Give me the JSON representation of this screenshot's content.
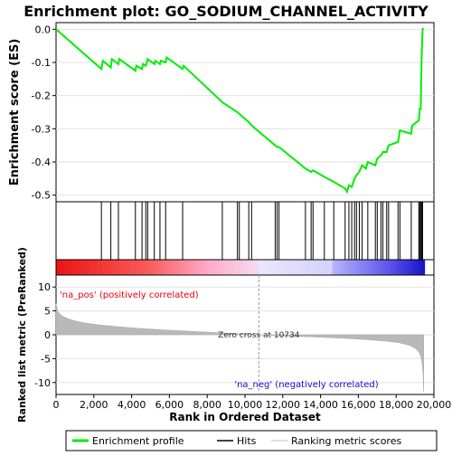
{
  "chart_data": {
    "type": "line",
    "title": "Enrichment plot: GO_SODIUM_CHANNEL_ACTIVITY",
    "top_panel": {
      "ylabel": "Enrichment score (ES)",
      "ylim": [
        -0.52,
        0.02
      ],
      "yticks": [
        0.0,
        -0.1,
        -0.2,
        -0.3,
        -0.4,
        -0.5
      ],
      "ytick_labels": [
        "0.0",
        "-0.1",
        "-0.2",
        "-0.3",
        "-0.4",
        "-0.5"
      ],
      "series_color": "#00ee00",
      "es_curve": [
        [
          0,
          0.0
        ],
        [
          2400,
          -0.12
        ],
        [
          2480,
          -0.095
        ],
        [
          2900,
          -0.115
        ],
        [
          2950,
          -0.09
        ],
        [
          3300,
          -0.105
        ],
        [
          3350,
          -0.09
        ],
        [
          4200,
          -0.125
        ],
        [
          4250,
          -0.11
        ],
        [
          4550,
          -0.12
        ],
        [
          4600,
          -0.105
        ],
        [
          4750,
          -0.11
        ],
        [
          4850,
          -0.09
        ],
        [
          5200,
          -0.105
        ],
        [
          5250,
          -0.095
        ],
        [
          5500,
          -0.105
        ],
        [
          5550,
          -0.095
        ],
        [
          5800,
          -0.1
        ],
        [
          5850,
          -0.085
        ],
        [
          6700,
          -0.12
        ],
        [
          6750,
          -0.11
        ],
        [
          8800,
          -0.22
        ],
        [
          9600,
          -0.25
        ],
        [
          9700,
          -0.255
        ],
        [
          10200,
          -0.28
        ],
        [
          10350,
          -0.29
        ],
        [
          11600,
          -0.35
        ],
        [
          11700,
          -0.355
        ],
        [
          11800,
          -0.355
        ],
        [
          13200,
          -0.42
        ],
        [
          13500,
          -0.43
        ],
        [
          13600,
          -0.425
        ],
        [
          14200,
          -0.445
        ],
        [
          14700,
          -0.46
        ],
        [
          15300,
          -0.48
        ],
        [
          15400,
          -0.49
        ],
        [
          15500,
          -0.47
        ],
        [
          15650,
          -0.475
        ],
        [
          15800,
          -0.45
        ],
        [
          15900,
          -0.44
        ],
        [
          16050,
          -0.43
        ],
        [
          16200,
          -0.41
        ],
        [
          16400,
          -0.42
        ],
        [
          16500,
          -0.4
        ],
        [
          16900,
          -0.41
        ],
        [
          17000,
          -0.39
        ],
        [
          17200,
          -0.38
        ],
        [
          17300,
          -0.37
        ],
        [
          17500,
          -0.37
        ],
        [
          17600,
          -0.35
        ],
        [
          18100,
          -0.34
        ],
        [
          18200,
          -0.305
        ],
        [
          18800,
          -0.315
        ],
        [
          18850,
          -0.29
        ],
        [
          19200,
          -0.275
        ],
        [
          19250,
          -0.24
        ],
        [
          19300,
          -0.24
        ],
        [
          19350,
          -0.085
        ],
        [
          19400,
          0.0
        ],
        [
          19450,
          0.003
        ]
      ]
    },
    "hits_panel": {
      "hit_ranks": [
        2400,
        2900,
        3300,
        4200,
        4550,
        4750,
        4850,
        5200,
        5500,
        5800,
        6700,
        8800,
        9600,
        9700,
        10200,
        10350,
        11600,
        11700,
        11800,
        13200,
        13500,
        13600,
        14200,
        14700,
        15300,
        15500,
        15650,
        15800,
        15900,
        16050,
        16200,
        16500,
        16900,
        17000,
        17200,
        17300,
        17500,
        17600,
        18100,
        18200,
        18800,
        19200,
        19250,
        19300,
        19350,
        19400
      ]
    },
    "metric_panel": {
      "ylabel": "Ranked list metric (PreRanked)",
      "ylim": [
        -12.5,
        12.5
      ],
      "yticks": [
        10,
        5,
        0,
        -5,
        -10
      ],
      "ytick_labels": [
        "10",
        "5",
        "0",
        "-5",
        "-10"
      ],
      "zero_cross_label": "Zero cross at 10734",
      "zero_cross": 10734,
      "pos_label": "'na_pos' (positively correlated)",
      "neg_label": "'na_neg' (negatively correlated)",
      "metric_curve": [
        [
          0,
          6.5
        ],
        [
          100,
          4.8
        ],
        [
          300,
          4.0
        ],
        [
          600,
          3.4
        ],
        [
          1000,
          2.9
        ],
        [
          1500,
          2.5
        ],
        [
          2000,
          2.2
        ],
        [
          3000,
          1.8
        ],
        [
          4000,
          1.45
        ],
        [
          5000,
          1.2
        ],
        [
          6000,
          0.95
        ],
        [
          7000,
          0.75
        ],
        [
          8000,
          0.55
        ],
        [
          9000,
          0.35
        ],
        [
          10000,
          0.15
        ],
        [
          10734,
          0.0
        ],
        [
          11500,
          -0.15
        ],
        [
          12500,
          -0.3
        ],
        [
          13500,
          -0.45
        ],
        [
          14500,
          -0.6
        ],
        [
          15500,
          -0.8
        ],
        [
          16500,
          -1.05
        ],
        [
          17500,
          -1.35
        ],
        [
          18200,
          -1.7
        ],
        [
          18700,
          -2.2
        ],
        [
          19000,
          -2.8
        ],
        [
          19200,
          -3.6
        ],
        [
          19300,
          -4.5
        ],
        [
          19380,
          -6.0
        ],
        [
          19430,
          -8.5
        ],
        [
          19460,
          -12.0
        ]
      ]
    },
    "xaxis": {
      "xlabel": "Rank in Ordered Dataset",
      "xlim": [
        0,
        20000
      ],
      "xticks": [
        0,
        2000,
        4000,
        6000,
        8000,
        10000,
        12000,
        14000,
        16000,
        18000,
        20000
      ],
      "xtick_labels": [
        "0",
        "2,000",
        "4,000",
        "6,000",
        "8,000",
        "10,000",
        "12,000",
        "14,000",
        "16,000",
        "18,000",
        "20,000"
      ],
      "n_genes": 19500
    },
    "legend": {
      "placement": "bottom",
      "items": [
        {
          "label": "Enrichment profile",
          "color": "#00ee00"
        },
        {
          "label": "Hits",
          "color": "#000000"
        },
        {
          "label": "Ranking metric scores",
          "color": "#c0c0c0"
        }
      ]
    }
  }
}
